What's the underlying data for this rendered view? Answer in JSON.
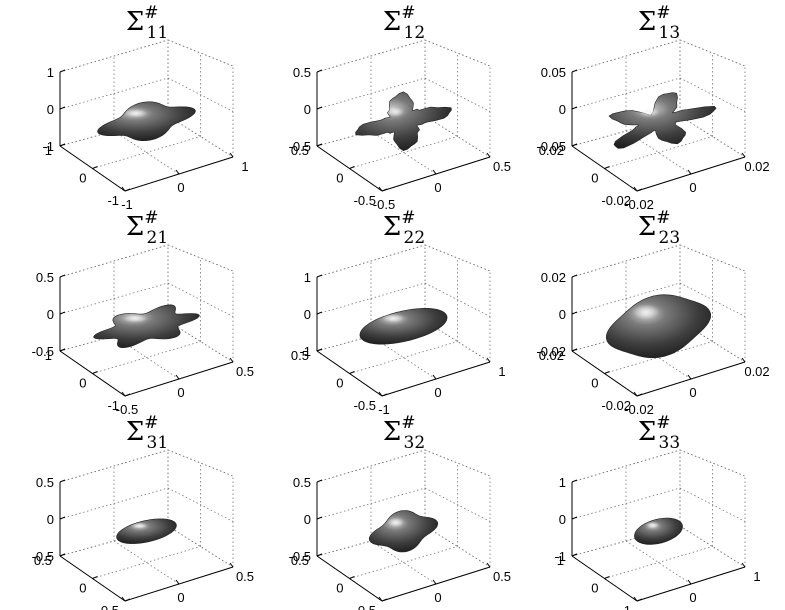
{
  "figure": {
    "layout": {
      "rows": 3,
      "cols": 3
    },
    "grid": true
  },
  "chart_data": [
    {
      "type": "3d-surface",
      "title": {
        "sym": "Σ",
        "sup": "#",
        "sub": "11"
      },
      "z_ticks": [
        "1",
        "0",
        "-1"
      ],
      "y_ticks": [
        "1",
        "0",
        "-1"
      ],
      "x_ticks": [
        "-1",
        "0",
        "1"
      ],
      "z_lim": [
        -1,
        1
      ],
      "y_lim": [
        -1,
        1
      ],
      "x_lim": [
        -1,
        1
      ],
      "surface": {
        "rx": 0.8,
        "ry": 0.55,
        "rz": 0.45,
        "lobes": 4,
        "lobe_amp": 0.18,
        "spiky": false
      }
    },
    {
      "type": "3d-surface",
      "title": {
        "sym": "Σ",
        "sup": "#",
        "sub": "12"
      },
      "z_ticks": [
        "0.5",
        "0",
        "-0.5"
      ],
      "y_ticks": [
        "0.5",
        "0",
        "-0.5"
      ],
      "x_ticks": [
        "-0.5",
        "0",
        "0.5"
      ],
      "z_lim": [
        -0.5,
        0.5
      ],
      "y_lim": [
        -0.5,
        0.5
      ],
      "x_lim": [
        -0.5,
        0.5
      ],
      "surface": {
        "rx": 0.62,
        "ry": 0.62,
        "rz": 0.55,
        "lobes": 4,
        "lobe_amp": 0.45,
        "spiky": true
      }
    },
    {
      "type": "3d-surface",
      "title": {
        "sym": "Σ",
        "sup": "#",
        "sub": "13"
      },
      "z_ticks": [
        "0.05",
        "0",
        "-0.05"
      ],
      "y_ticks": [
        "0.02",
        "0",
        "-0.02"
      ],
      "x_ticks": [
        "-0.02",
        "0",
        "0.02"
      ],
      "z_lim": [
        -0.05,
        0.05
      ],
      "y_lim": [
        -0.02,
        0.02
      ],
      "x_lim": [
        -0.02,
        0.02
      ],
      "surface": {
        "rx": 0.72,
        "ry": 0.72,
        "rz": 0.3,
        "lobes": 5,
        "lobe_amp": 0.5,
        "spiky": true
      }
    },
    {
      "type": "3d-surface",
      "title": {
        "sym": "Σ",
        "sup": "#",
        "sub": "21"
      },
      "z_ticks": [
        "0.5",
        "0",
        "-0.5"
      ],
      "y_ticks": [
        "1",
        "0",
        "-1"
      ],
      "x_ticks": [
        "-0.5",
        "0",
        "0.5"
      ],
      "z_lim": [
        -0.5,
        0.5
      ],
      "y_lim": [
        -1,
        1
      ],
      "x_lim": [
        -0.5,
        0.5
      ],
      "surface": {
        "rx": 0.85,
        "ry": 0.55,
        "rz": 0.4,
        "lobes": 6,
        "lobe_amp": 0.2,
        "spiky": false
      }
    },
    {
      "type": "3d-surface",
      "title": {
        "sym": "Σ",
        "sup": "#",
        "sub": "22"
      },
      "z_ticks": [
        "1",
        "0",
        "-1"
      ],
      "y_ticks": [
        "0.5",
        "0",
        "-0.5"
      ],
      "x_ticks": [
        "-1",
        "0",
        "1"
      ],
      "z_lim": [
        -1,
        1
      ],
      "y_lim": [
        -0.5,
        0.5
      ],
      "x_lim": [
        -1,
        1
      ],
      "surface": {
        "rx": 0.78,
        "ry": 0.5,
        "rz": 0.55,
        "lobes": 2,
        "lobe_amp": 0.08,
        "spiky": false
      }
    },
    {
      "type": "3d-surface",
      "title": {
        "sym": "Σ",
        "sup": "#",
        "sub": "23"
      },
      "z_ticks": [
        "0.02",
        "0",
        "-0.02"
      ],
      "y_ticks": [
        "0.02",
        "0",
        "-0.02"
      ],
      "x_ticks": [
        "-0.02",
        "0",
        "0.02"
      ],
      "z_lim": [
        -0.02,
        0.02
      ],
      "y_lim": [
        -0.02,
        0.02
      ],
      "x_lim": [
        -0.02,
        0.02
      ],
      "surface": {
        "rx": 0.95,
        "ry": 0.95,
        "rz": 0.85,
        "lobes": 4,
        "lobe_amp": 0.06,
        "spiky": false
      }
    },
    {
      "type": "3d-surface",
      "title": {
        "sym": "Σ",
        "sup": "#",
        "sub": "31"
      },
      "z_ticks": [
        "0.5",
        "0",
        "-0.5"
      ],
      "y_ticks": [
        "0.5",
        "0",
        "-0.5"
      ],
      "x_ticks": [
        "-0.5",
        "0",
        "0.5"
      ],
      "z_lim": [
        -0.5,
        0.5
      ],
      "y_lim": [
        -0.5,
        0.5
      ],
      "x_lim": [
        -0.5,
        0.5
      ],
      "surface": {
        "rx": 0.55,
        "ry": 0.32,
        "rz": 0.42,
        "lobes": 2,
        "lobe_amp": 0.05,
        "spiky": false
      }
    },
    {
      "type": "3d-surface",
      "title": {
        "sym": "Σ",
        "sup": "#",
        "sub": "32"
      },
      "z_ticks": [
        "0.5",
        "0",
        "-0.5"
      ],
      "y_ticks": [
        "0.5",
        "0",
        "-0.5"
      ],
      "x_ticks": [
        "-0.5",
        "0",
        "0.5"
      ],
      "z_lim": [
        -0.5,
        0.5
      ],
      "y_lim": [
        -0.5,
        0.5
      ],
      "x_lim": [
        -0.5,
        0.5
      ],
      "surface": {
        "rx": 0.58,
        "ry": 0.58,
        "rz": 0.55,
        "lobes": 4,
        "lobe_amp": 0.14,
        "spiky": false
      }
    },
    {
      "type": "3d-surface",
      "title": {
        "sym": "Σ",
        "sup": "#",
        "sub": "33"
      },
      "z_ticks": [
        "1",
        "0",
        "-1"
      ],
      "y_ticks": [
        "1",
        "0",
        "-1"
      ],
      "x_ticks": [
        "-1",
        "0",
        "1"
      ],
      "z_lim": [
        -1,
        1
      ],
      "y_lim": [
        -1,
        1
      ],
      "x_lim": [
        -1,
        1
      ],
      "surface": {
        "rx": 0.45,
        "ry": 0.4,
        "rz": 0.38,
        "lobes": 2,
        "lobe_amp": 0.03,
        "spiky": false
      }
    }
  ]
}
